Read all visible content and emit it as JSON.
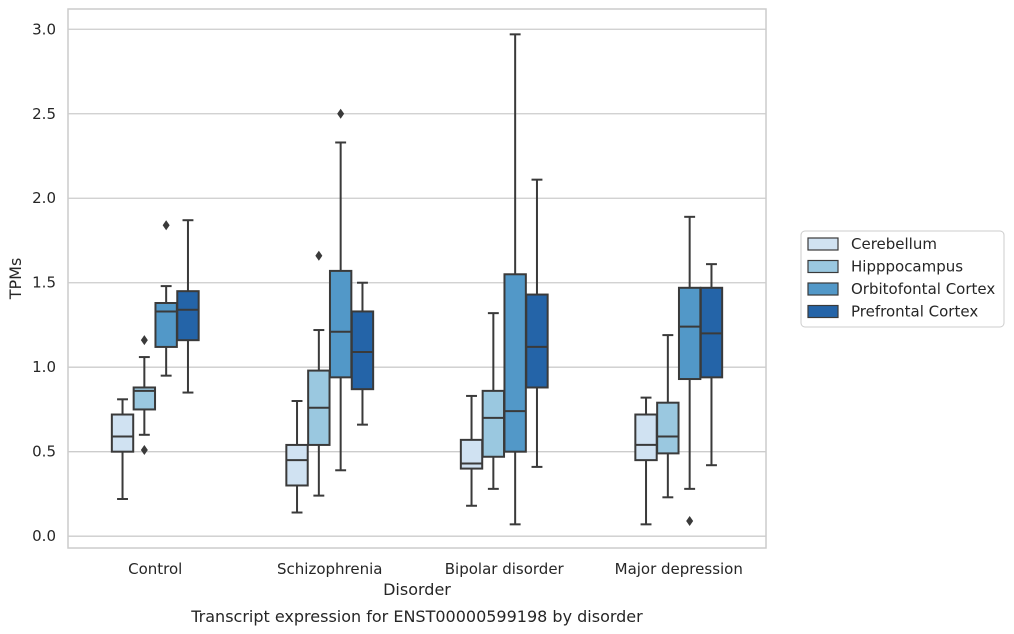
{
  "chart_data": {
    "type": "boxplot",
    "title": "",
    "caption": "Transcript expression for ENST00000599198 by disorder",
    "xlabel": "Disorder",
    "ylabel": "TPMs",
    "ylim": [
      -0.07,
      3.12
    ],
    "yticks": [
      "0.0",
      "0.5",
      "1.0",
      "1.5",
      "2.0",
      "2.5",
      "3.0"
    ],
    "ytick_values": [
      0,
      0.5,
      1.0,
      1.5,
      2.0,
      2.5,
      3.0
    ],
    "grid": true,
    "legend_position": "right",
    "categories": [
      "Control",
      "Schizophrenia",
      "Bipolar disorder",
      "Major depression"
    ],
    "series": [
      {
        "name": "Cerebellum",
        "color": "#d0e2f2",
        "boxes": [
          {
            "whisker_low": 0.22,
            "q1": 0.5,
            "median": 0.59,
            "q3": 0.72,
            "whisker_high": 0.81,
            "outliers": []
          },
          {
            "whisker_low": 0.14,
            "q1": 0.3,
            "median": 0.45,
            "q3": 0.54,
            "whisker_high": 0.8,
            "outliers": []
          },
          {
            "whisker_low": 0.18,
            "q1": 0.4,
            "median": 0.43,
            "q3": 0.57,
            "whisker_high": 0.83,
            "outliers": []
          },
          {
            "whisker_low": 0.07,
            "q1": 0.45,
            "median": 0.54,
            "q3": 0.72,
            "whisker_high": 0.82,
            "outliers": []
          }
        ]
      },
      {
        "name": "Hipppocampus",
        "color": "#9ac8e0",
        "boxes": [
          {
            "whisker_low": 0.6,
            "q1": 0.75,
            "median": 0.86,
            "q3": 0.88,
            "whisker_high": 1.06,
            "outliers": [
              0.51,
              1.16
            ]
          },
          {
            "whisker_low": 0.24,
            "q1": 0.54,
            "median": 0.76,
            "q3": 0.98,
            "whisker_high": 1.22,
            "outliers": [
              1.66
            ]
          },
          {
            "whisker_low": 0.28,
            "q1": 0.47,
            "median": 0.7,
            "q3": 0.86,
            "whisker_high": 1.32,
            "outliers": []
          },
          {
            "whisker_low": 0.23,
            "q1": 0.49,
            "median": 0.59,
            "q3": 0.79,
            "whisker_high": 1.19,
            "outliers": []
          }
        ]
      },
      {
        "name": "Orbitofontal Cortex",
        "color": "#5298c8",
        "boxes": [
          {
            "whisker_low": 0.95,
            "q1": 1.12,
            "median": 1.33,
            "q3": 1.38,
            "whisker_high": 1.48,
            "outliers": [
              1.84
            ]
          },
          {
            "whisker_low": 0.39,
            "q1": 0.94,
            "median": 1.21,
            "q3": 1.57,
            "whisker_high": 2.33,
            "outliers": [
              2.5
            ]
          },
          {
            "whisker_low": 0.07,
            "q1": 0.5,
            "median": 0.74,
            "q3": 1.55,
            "whisker_high": 2.97,
            "outliers": []
          },
          {
            "whisker_low": 0.28,
            "q1": 0.93,
            "median": 1.24,
            "q3": 1.47,
            "whisker_high": 1.89,
            "outliers": [
              0.09
            ]
          }
        ]
      },
      {
        "name": "Prefrontal Cortex",
        "color": "#2464a8",
        "boxes": [
          {
            "whisker_low": 0.85,
            "q1": 1.16,
            "median": 1.34,
            "q3": 1.45,
            "whisker_high": 1.87,
            "outliers": []
          },
          {
            "whisker_low": 0.66,
            "q1": 0.87,
            "median": 1.09,
            "q3": 1.33,
            "whisker_high": 1.5,
            "outliers": []
          },
          {
            "whisker_low": 0.41,
            "q1": 0.88,
            "median": 1.12,
            "q3": 1.43,
            "whisker_high": 2.11,
            "outliers": []
          },
          {
            "whisker_low": 0.42,
            "q1": 0.94,
            "median": 1.2,
            "q3": 1.47,
            "whisker_high": 1.61,
            "outliers": []
          }
        ]
      }
    ]
  }
}
